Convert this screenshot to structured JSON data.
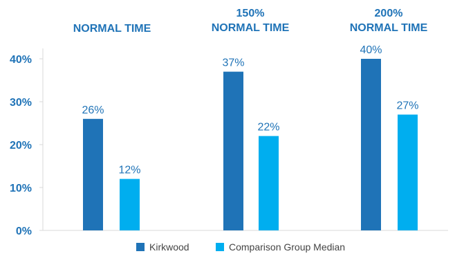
{
  "chart_data": {
    "type": "bar",
    "categories": [
      [
        "NORMAL TIME"
      ],
      [
        "150%",
        "NORMAL TIME"
      ],
      [
        "200%",
        "NORMAL TIME"
      ]
    ],
    "series": [
      {
        "name": "Kirkwood",
        "values": [
          26,
          37,
          40
        ],
        "color": "#1f73b7"
      },
      {
        "name": "Comparison Group Median",
        "values": [
          12,
          22,
          27
        ],
        "color": "#00aeef"
      }
    ],
    "data_labels": [
      [
        "26%",
        "37%",
        "40%"
      ],
      [
        "12%",
        "22%",
        "27%"
      ]
    ],
    "y_ticks": [
      "0%",
      "10%",
      "20%",
      "30%",
      "40%"
    ],
    "ylim": [
      0,
      40
    ],
    "grid": false,
    "legend": "bottom-center",
    "text_color": "#1f73b7",
    "axis_color": "#d9d9d9"
  }
}
